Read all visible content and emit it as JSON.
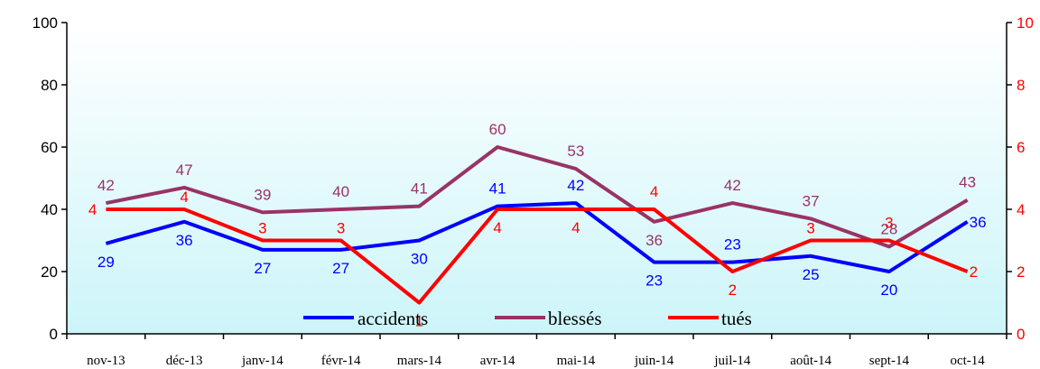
{
  "chart_data": {
    "type": "line",
    "title": "",
    "xlabel": "",
    "ylabel": "",
    "categories": [
      "nov-13",
      "déc-13",
      "janv-14",
      "févr-14",
      "mars-14",
      "avr-14",
      "mai-14",
      "juin-14",
      "juil-14",
      "août-14",
      "sept-14",
      "oct-14"
    ],
    "ylim": [
      0,
      100
    ],
    "y_ticks": [
      "0",
      "20",
      "40",
      "60",
      "80",
      "100"
    ],
    "y2lim": [
      0,
      10
    ],
    "y2_ticks": [
      "0",
      "2",
      "4",
      "6",
      "8",
      "10"
    ],
    "legend_position": "bottom-center inside plot",
    "background": "gradient white to light cyan",
    "grid": false,
    "series": [
      {
        "name": "accidents",
        "axis": "left",
        "color": "#0000ff",
        "values": [
          29,
          36,
          27,
          27,
          30,
          41,
          42,
          23,
          23,
          25,
          20,
          36
        ]
      },
      {
        "name": "blessés",
        "axis": "left",
        "color": "#993366",
        "values": [
          42,
          47,
          39,
          40,
          41,
          60,
          53,
          36,
          42,
          37,
          28,
          43
        ]
      },
      {
        "name": "tués",
        "axis": "right",
        "color": "#ff0000",
        "values": [
          4,
          4,
          3,
          3,
          1,
          4,
          4,
          4,
          2,
          3,
          3,
          2
        ]
      }
    ]
  },
  "colors": {
    "left_axis": "#000000",
    "right_axis": "#ff0000"
  }
}
